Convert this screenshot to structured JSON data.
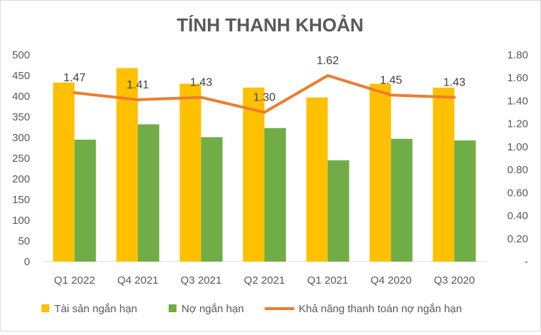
{
  "chart_data": {
    "type": "bar",
    "title": "TÍNH THANH KHOẢN",
    "categories": [
      "Q1 2022",
      "Q4 2021",
      "Q3 2021",
      "Q2 2021",
      "Q1 2021",
      "Q4 2020",
      "Q3 2020"
    ],
    "series": [
      {
        "name": "Tài sản ngắn hạn",
        "type": "bar",
        "axis": "left",
        "color": "#FFC000",
        "values": [
          433,
          468,
          430,
          421,
          397,
          430,
          421
        ]
      },
      {
        "name": "Nợ ngắn hạn",
        "type": "bar",
        "axis": "left",
        "color": "#70AD47",
        "values": [
          295,
          332,
          301,
          323,
          245,
          297,
          293
        ]
      },
      {
        "name": "Khả năng thanh toán nợ ngắn hạn",
        "type": "line",
        "axis": "right",
        "color": "#ED7D31",
        "values": [
          1.47,
          1.41,
          1.43,
          1.3,
          1.62,
          1.45,
          1.43
        ],
        "labels": [
          "1.47",
          "1.41",
          "1.43",
          "1.30",
          "1.62",
          "1.45",
          "1.43"
        ]
      }
    ],
    "ylim": [
      0,
      500
    ],
    "y_ticks": [
      "0",
      "50",
      "100",
      "150",
      "200",
      "250",
      "300",
      "350",
      "400",
      "450",
      "500"
    ],
    "y2lim": [
      0,
      1.8
    ],
    "y2_ticks": [
      "-",
      "0.20",
      "0.40",
      "0.60",
      "0.80",
      "1.00",
      "1.20",
      "1.40",
      "1.60",
      "1.80"
    ],
    "grid": false,
    "legend": "bottom"
  }
}
